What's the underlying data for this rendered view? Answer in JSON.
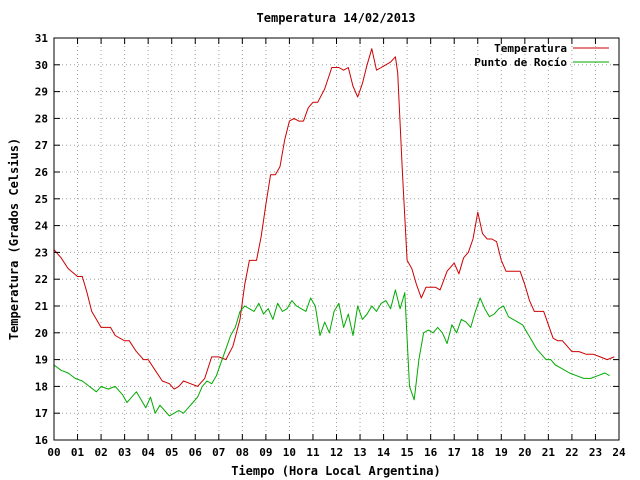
{
  "chart_data": {
    "type": "line",
    "title": "Temperatura 14/02/2013",
    "xlabel": "Tiempo (Hora Local Argentina)",
    "ylabel": "Temperatura (Grados Celsius)",
    "xlim": [
      0,
      24
    ],
    "ylim": [
      16,
      31
    ],
    "grid": true,
    "legend_position": "top-right",
    "x_ticks": [
      "00",
      "01",
      "02",
      "03",
      "04",
      "05",
      "06",
      "07",
      "08",
      "09",
      "10",
      "11",
      "12",
      "13",
      "14",
      "15",
      "16",
      "17",
      "18",
      "19",
      "20",
      "21",
      "22",
      "23",
      "24"
    ],
    "y_ticks": [
      "16",
      "17",
      "18",
      "19",
      "20",
      "21",
      "22",
      "23",
      "24",
      "25",
      "26",
      "27",
      "28",
      "29",
      "30",
      "31"
    ],
    "series": [
      {
        "name": "Temperatura",
        "color": "#cc0000",
        "x": [
          0.0,
          0.3,
          0.6,
          1.0,
          1.2,
          1.4,
          1.6,
          2.0,
          2.4,
          2.6,
          3.0,
          3.2,
          3.5,
          3.8,
          4.0,
          4.3,
          4.6,
          4.9,
          5.1,
          5.3,
          5.5,
          5.8,
          6.1,
          6.4,
          6.7,
          7.0,
          7.3,
          7.6,
          7.9,
          8.1,
          8.3,
          8.6,
          8.8,
          9.0,
          9.2,
          9.4,
          9.6,
          9.8,
          10.0,
          10.2,
          10.4,
          10.6,
          10.8,
          11.0,
          11.2,
          11.5,
          11.8,
          12.1,
          12.3,
          12.5,
          12.7,
          12.9,
          13.1,
          13.3,
          13.5,
          13.7,
          13.9,
          14.1,
          14.3,
          14.5,
          14.6,
          14.8,
          15.0,
          15.2,
          15.4,
          15.6,
          15.8,
          16.0,
          16.2,
          16.4,
          16.7,
          17.0,
          17.2,
          17.4,
          17.6,
          17.8,
          18.0,
          18.2,
          18.4,
          18.6,
          18.8,
          19.0,
          19.2,
          19.5,
          19.8,
          20.0,
          20.2,
          20.4,
          20.6,
          20.8,
          21.0,
          21.2,
          21.4,
          21.6,
          21.8,
          22.0,
          22.3,
          22.6,
          22.9,
          23.2,
          23.5,
          23.8
        ],
        "y": [
          23.1,
          22.8,
          22.4,
          22.1,
          22.1,
          21.5,
          20.8,
          20.2,
          20.2,
          19.9,
          19.7,
          19.7,
          19.3,
          19.0,
          19.0,
          18.6,
          18.2,
          18.1,
          17.9,
          18.0,
          18.2,
          18.1,
          18.0,
          18.3,
          19.1,
          19.1,
          19.0,
          19.5,
          20.5,
          21.8,
          22.7,
          22.7,
          23.6,
          24.8,
          25.9,
          25.9,
          26.2,
          27.2,
          27.9,
          28.0,
          27.9,
          27.9,
          28.4,
          28.6,
          28.6,
          29.1,
          29.9,
          29.9,
          29.8,
          29.9,
          29.2,
          28.8,
          29.3,
          30.0,
          30.6,
          29.8,
          29.9,
          30.0,
          30.1,
          30.3,
          29.7,
          26.0,
          22.7,
          22.4,
          21.8,
          21.3,
          21.7,
          21.7,
          21.7,
          21.6,
          22.3,
          22.6,
          22.2,
          22.8,
          23.0,
          23.5,
          24.5,
          23.7,
          23.5,
          23.5,
          23.4,
          22.7,
          22.3,
          22.3,
          22.3,
          21.8,
          21.2,
          20.8,
          20.8,
          20.8,
          20.3,
          19.8,
          19.7,
          19.7,
          19.5,
          19.3,
          19.3,
          19.2,
          19.2,
          19.1,
          19.0,
          19.1
        ]
      },
      {
        "name": "Punto de Rocío",
        "color": "#00aa00",
        "x": [
          0.0,
          0.3,
          0.6,
          0.9,
          1.2,
          1.5,
          1.8,
          2.0,
          2.3,
          2.6,
          2.9,
          3.1,
          3.3,
          3.5,
          3.7,
          3.9,
          4.1,
          4.3,
          4.5,
          4.7,
          4.9,
          5.1,
          5.3,
          5.5,
          5.7,
          5.9,
          6.1,
          6.3,
          6.5,
          6.7,
          6.9,
          7.1,
          7.3,
          7.5,
          7.7,
          7.9,
          8.1,
          8.3,
          8.5,
          8.7,
          8.9,
          9.1,
          9.3,
          9.5,
          9.7,
          9.9,
          10.1,
          10.3,
          10.5,
          10.7,
          10.9,
          11.1,
          11.3,
          11.5,
          11.7,
          11.9,
          12.1,
          12.3,
          12.5,
          12.7,
          12.9,
          13.1,
          13.3,
          13.5,
          13.7,
          13.9,
          14.1,
          14.3,
          14.5,
          14.7,
          14.9,
          15.1,
          15.3,
          15.5,
          15.7,
          15.9,
          16.1,
          16.3,
          16.5,
          16.7,
          16.9,
          17.1,
          17.3,
          17.5,
          17.7,
          17.9,
          18.1,
          18.3,
          18.5,
          18.7,
          18.9,
          19.1,
          19.3,
          19.5,
          19.7,
          19.9,
          20.1,
          20.3,
          20.5,
          20.7,
          20.9,
          21.1,
          21.3,
          21.5,
          21.7,
          21.9,
          22.2,
          22.5,
          22.8,
          23.1,
          23.4,
          23.6
        ],
        "y": [
          18.8,
          18.6,
          18.5,
          18.3,
          18.2,
          18.0,
          17.8,
          18.0,
          17.9,
          18.0,
          17.7,
          17.4,
          17.6,
          17.8,
          17.5,
          17.2,
          17.6,
          17.0,
          17.3,
          17.1,
          16.9,
          17.0,
          17.1,
          17.0,
          17.2,
          17.4,
          17.6,
          18.0,
          18.2,
          18.1,
          18.4,
          18.9,
          19.4,
          19.9,
          20.2,
          20.8,
          21.0,
          20.9,
          20.8,
          21.1,
          20.7,
          20.9,
          20.5,
          21.1,
          20.8,
          20.9,
          21.2,
          21.0,
          20.9,
          20.8,
          21.3,
          21.0,
          19.9,
          20.4,
          20.0,
          20.8,
          21.1,
          20.2,
          20.7,
          19.9,
          21.0,
          20.5,
          20.7,
          21.0,
          20.8,
          21.1,
          21.2,
          20.9,
          21.6,
          20.9,
          21.5,
          18.0,
          17.5,
          19.0,
          20.0,
          20.1,
          20.0,
          20.2,
          20.0,
          19.6,
          20.3,
          20.0,
          20.5,
          20.4,
          20.2,
          20.8,
          21.3,
          20.9,
          20.6,
          20.7,
          20.9,
          21.0,
          20.6,
          20.5,
          20.4,
          20.3,
          20.0,
          19.7,
          19.4,
          19.2,
          19.0,
          19.0,
          18.8,
          18.7,
          18.6,
          18.5,
          18.4,
          18.3,
          18.3,
          18.4,
          18.5,
          18.4
        ]
      }
    ]
  }
}
